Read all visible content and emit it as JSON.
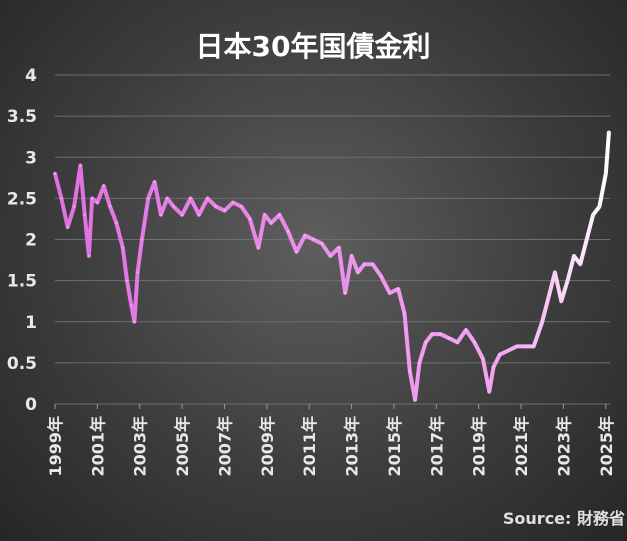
{
  "chart_data": {
    "type": "line",
    "title": "日本30年国債金利",
    "source": "Source: 財務省",
    "xlabel": "",
    "ylabel": "",
    "ylim": [
      0,
      4
    ],
    "y_ticks": [
      "0",
      "0.5",
      "1",
      "1.5",
      "2",
      "2.5",
      "3",
      "3.5",
      "4"
    ],
    "x_ticks": [
      "1999年",
      "2001年",
      "2003年",
      "2005年",
      "2007年",
      "2009年",
      "2011年",
      "2013年",
      "2015年",
      "2017年",
      "2019年",
      "2021年",
      "2023年",
      "2025年"
    ],
    "grid": true,
    "line_color_start": "#e070e0",
    "line_color_end": "#ffffff",
    "series": [
      {
        "x": [
          1999.0,
          1999.3,
          1999.6,
          1999.9,
          2000.2,
          2000.4,
          2000.6,
          2000.75,
          2001.0,
          2001.3,
          2001.6,
          2001.9,
          2002.2,
          2002.4,
          2002.6,
          2002.75,
          2002.9,
          2003.1,
          2003.4,
          2003.7,
          2004.0,
          2004.3,
          2004.6,
          2005.0,
          2005.4,
          2005.8,
          2006.2,
          2006.6,
          2007.0,
          2007.4,
          2007.8,
          2008.2,
          2008.6,
          2008.9,
          2009.2,
          2009.6,
          2010.0,
          2010.4,
          2010.8,
          2011.2,
          2011.6,
          2012.0,
          2012.4,
          2012.7,
          2013.0,
          2013.3,
          2013.6,
          2014.0,
          2014.4,
          2014.8,
          2015.2,
          2015.5,
          2015.75,
          2016.0,
          2016.2,
          2016.5,
          2016.8,
          2017.2,
          2017.6,
          2018.0,
          2018.4,
          2018.8,
          2019.2,
          2019.5,
          2019.7,
          2020.0,
          2020.4,
          2020.8,
          2021.2,
          2021.6,
          2022.0,
          2022.3,
          2022.6,
          2022.9,
          2023.2,
          2023.5,
          2023.8,
          2024.1,
          2024.4,
          2024.7,
          2025.0,
          2025.15
        ],
        "y": [
          2.8,
          2.5,
          2.15,
          2.4,
          2.9,
          2.3,
          1.8,
          2.5,
          2.45,
          2.65,
          2.4,
          2.2,
          1.9,
          1.5,
          1.2,
          1.0,
          1.6,
          2.0,
          2.5,
          2.7,
          2.3,
          2.5,
          2.4,
          2.3,
          2.5,
          2.3,
          2.5,
          2.4,
          2.35,
          2.45,
          2.4,
          2.25,
          1.9,
          2.3,
          2.2,
          2.3,
          2.1,
          1.85,
          2.05,
          2.0,
          1.95,
          1.8,
          1.9,
          1.35,
          1.8,
          1.6,
          1.7,
          1.7,
          1.55,
          1.35,
          1.4,
          1.1,
          0.4,
          0.05,
          0.5,
          0.75,
          0.85,
          0.85,
          0.8,
          0.75,
          0.9,
          0.75,
          0.55,
          0.15,
          0.45,
          0.6,
          0.65,
          0.7,
          0.7,
          0.7,
          1.0,
          1.3,
          1.6,
          1.25,
          1.5,
          1.8,
          1.7,
          2.0,
          2.3,
          2.4,
          2.8,
          3.3
        ]
      }
    ]
  }
}
